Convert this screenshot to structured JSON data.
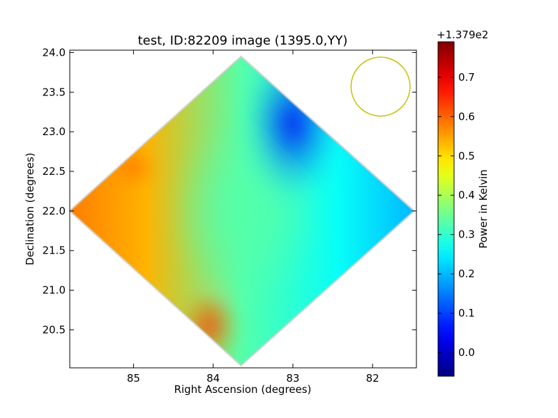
{
  "chart_data": {
    "type": "heatmap",
    "title": "test, ID:82209 image (1395.0,YY)",
    "xlabel": "Right Ascension (degrees)",
    "ylabel": "Declination (degrees)",
    "x_reversed": true,
    "xlim": [
      85.8,
      81.45
    ],
    "ylim": [
      20.02,
      24.03
    ],
    "x_ticks": [
      {
        "value": 85,
        "label": "85"
      },
      {
        "value": 84,
        "label": "84"
      },
      {
        "value": 83,
        "label": "83"
      },
      {
        "value": 82,
        "label": "82"
      }
    ],
    "y_ticks": [
      {
        "value": 20.5,
        "label": "20.5"
      },
      {
        "value": 21.0,
        "label": "21.0"
      },
      {
        "value": 21.5,
        "label": "21.5"
      },
      {
        "value": 22.0,
        "label": "22.0"
      },
      {
        "value": 22.5,
        "label": "22.5"
      },
      {
        "value": 23.0,
        "label": "23.0"
      },
      {
        "value": 23.5,
        "label": "23.5"
      },
      {
        "value": 24.0,
        "label": "24.0"
      }
    ],
    "footprint_diamond": {
      "ra": [
        83.65,
        81.48,
        83.65,
        85.8
      ],
      "dec": [
        23.95,
        22.0,
        20.05,
        22.0
      ]
    },
    "beam_circle": {
      "ra": 81.9,
      "dec": 23.57,
      "radius_deg": 0.37,
      "color": "#c8c000"
    },
    "features": [
      {
        "kind": "min",
        "ra": 83.0,
        "dec": 23.1,
        "value": 0.04
      },
      {
        "kind": "max",
        "ra": 84.05,
        "dec": 20.55,
        "value": 0.66
      },
      {
        "kind": "max",
        "ra": 85.0,
        "dec": 22.55,
        "value": 0.66
      },
      {
        "kind": "west-edge",
        "ra": 81.6,
        "dec": 22.0,
        "value": 0.2
      },
      {
        "kind": "east-edge",
        "ra": 85.6,
        "dec": 22.0,
        "value": 0.58
      },
      {
        "kind": "center",
        "ra": 83.6,
        "dec": 22.0,
        "value": 0.33
      }
    ],
    "colorbar": {
      "label": "Power in Kelvin",
      "offset_label": "+1.379e2",
      "range": [
        -0.06,
        0.79
      ],
      "ticks": [
        {
          "value": 0.0,
          "label": "0.0"
        },
        {
          "value": 0.1,
          "label": "0.1"
        },
        {
          "value": 0.2,
          "label": "0.2"
        },
        {
          "value": 0.3,
          "label": "0.3"
        },
        {
          "value": 0.4,
          "label": "0.4"
        },
        {
          "value": 0.5,
          "label": "0.5"
        },
        {
          "value": 0.6,
          "label": "0.6"
        },
        {
          "value": 0.7,
          "label": "0.7"
        }
      ],
      "colormap": "jet"
    },
    "grid": false
  }
}
